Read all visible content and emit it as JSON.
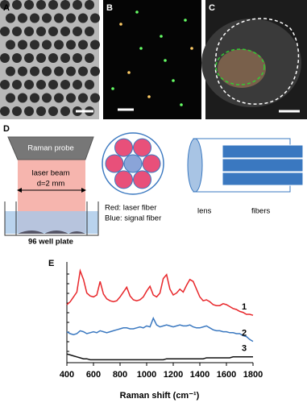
{
  "panels": [
    "A",
    "B",
    "C",
    "D",
    "E"
  ],
  "diagram": {
    "probe": "Raman probe",
    "beam": "laser beam",
    "diameter": "d=2 mm",
    "plate": "96 well plate",
    "legend_red": "Red: laser fiber",
    "legend_blue": "Blue: signal fiber",
    "lens": "lens",
    "fibers": "fibers"
  },
  "chart_data": {
    "type": "line",
    "x_label": "Raman shift (cm⁻¹)",
    "x": [
      400,
      425,
      450,
      475,
      500,
      525,
      550,
      575,
      600,
      625,
      650,
      675,
      700,
      725,
      750,
      775,
      800,
      825,
      850,
      875,
      900,
      925,
      950,
      975,
      1000,
      1025,
      1050,
      1075,
      1100,
      1125,
      1150,
      1175,
      1200,
      1225,
      1250,
      1275,
      1300,
      1325,
      1350,
      1375,
      1400,
      1425,
      1450,
      1475,
      1500,
      1525,
      1550,
      1575,
      1600,
      1625,
      1650,
      1675,
      1700,
      1725,
      1750,
      1775,
      1800
    ],
    "series": [
      {
        "name": "1",
        "color": "#e8262a",
        "values": [
          6.0,
          6.3,
          6.8,
          7.3,
          9.5,
          8.6,
          7.2,
          6.9,
          6.8,
          7.0,
          8.4,
          7.1,
          6.6,
          6.4,
          6.3,
          6.4,
          6.8,
          7.3,
          7.8,
          6.9,
          6.5,
          6.4,
          6.5,
          6.8,
          7.4,
          7.9,
          7.0,
          6.8,
          7.2,
          8.7,
          9.1,
          7.6,
          7.0,
          7.2,
          7.6,
          7.3,
          8.0,
          8.6,
          8.4,
          7.6,
          6.8,
          6.4,
          6.5,
          6.3,
          6.0,
          5.9,
          5.9,
          6.1,
          6.0,
          5.8,
          5.6,
          5.5,
          5.3,
          5.2,
          5.0,
          5.0,
          4.9
        ]
      },
      {
        "name": "2",
        "color": "#3a78c0",
        "values": [
          3.2,
          3.0,
          2.9,
          3.0,
          3.3,
          3.2,
          3.0,
          3.1,
          3.2,
          3.1,
          3.3,
          3.2,
          3.1,
          3.2,
          3.3,
          3.4,
          3.5,
          3.6,
          3.6,
          3.5,
          3.5,
          3.6,
          3.7,
          3.6,
          3.8,
          3.7,
          4.6,
          3.9,
          3.7,
          3.8,
          3.9,
          3.8,
          3.7,
          3.8,
          3.9,
          3.8,
          3.8,
          3.9,
          3.7,
          3.6,
          3.6,
          3.7,
          3.8,
          3.6,
          3.4,
          3.3,
          3.3,
          3.2,
          3.2,
          3.1,
          3.1,
          3.0,
          3.0,
          2.8,
          2.7,
          2.4,
          2.2
        ]
      },
      {
        "name": "3",
        "color": "#111111",
        "values": [
          0.9,
          0.8,
          0.7,
          0.6,
          0.5,
          0.4,
          0.4,
          0.3,
          0.3,
          0.3,
          0.3,
          0.3,
          0.3,
          0.3,
          0.3,
          0.3,
          0.3,
          0.3,
          0.3,
          0.3,
          0.3,
          0.3,
          0.3,
          0.3,
          0.3,
          0.3,
          0.3,
          0.3,
          0.3,
          0.3,
          0.4,
          0.4,
          0.4,
          0.4,
          0.4,
          0.4,
          0.4,
          0.4,
          0.4,
          0.4,
          0.4,
          0.4,
          0.5,
          0.5,
          0.5,
          0.5,
          0.5,
          0.5,
          0.5,
          0.5,
          0.6,
          0.6,
          0.6,
          0.6,
          0.6,
          0.6,
          0.6
        ]
      }
    ],
    "xlim": [
      400,
      1800
    ],
    "xticks": [
      400,
      600,
      800,
      1000,
      1200,
      1400,
      1600,
      1800
    ],
    "ylim": [
      0,
      10
    ]
  }
}
